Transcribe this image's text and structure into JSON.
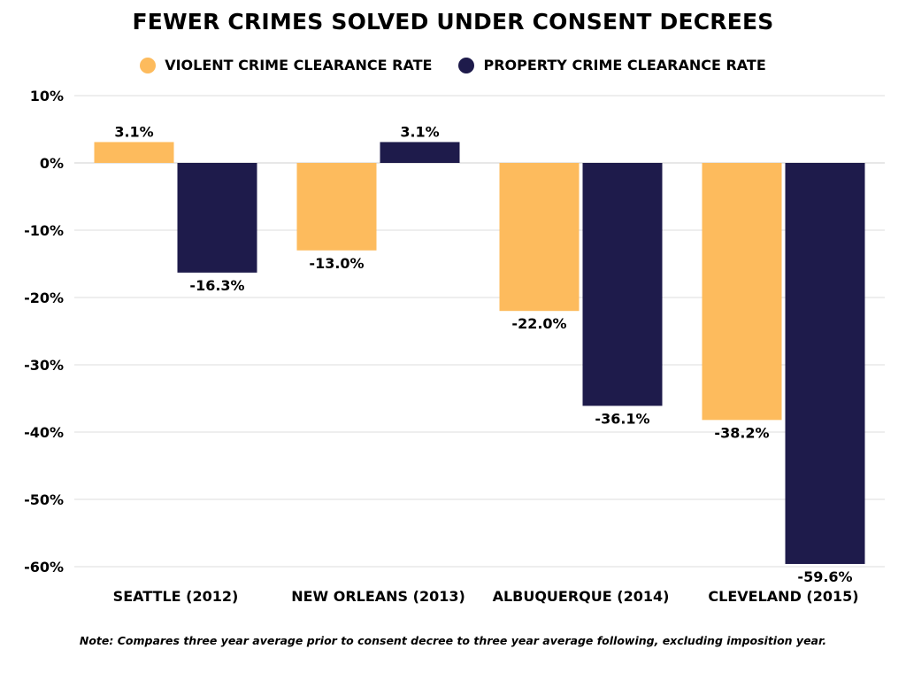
{
  "chart_data": {
    "type": "bar",
    "title": "FEWER CRIMES SOLVED UNDER CONSENT DECREES",
    "categories": [
      "SEATTLE (2012)",
      "NEW ORLEANS (2013)",
      "ALBUQUERQUE (2014)",
      "CLEVELAND (2015)"
    ],
    "series": [
      {
        "name": "VIOLENT CRIME CLEARANCE RATE",
        "color": "#fdbb5d",
        "values": [
          3.1,
          -13.0,
          -22.0,
          -38.2
        ]
      },
      {
        "name": "PROPERTY CRIME CLEARANCE RATE",
        "color": "#1e1b4b",
        "values": [
          -16.3,
          3.1,
          -36.1,
          -59.6
        ]
      }
    ],
    "data_labels": [
      [
        "3.1%",
        "-13.0%",
        "-22.0%",
        "-38.2%"
      ],
      [
        "-16.3%",
        "3.1%",
        "-36.1%",
        "-59.6%"
      ]
    ],
    "ylim": [
      -60,
      10
    ],
    "yticks": [
      10,
      0,
      -10,
      -20,
      -30,
      -40,
      -50,
      -60
    ],
    "ytick_labels": [
      "10%",
      "0%",
      "-10%",
      "-20%",
      "-30%",
      "-40%",
      "-50%",
      "-60%"
    ],
    "grid": true,
    "legend_position": "top-center",
    "xlabel": "",
    "ylabel": ""
  },
  "note": "Note: Compares three year average prior to consent decree to three year average following, excluding imposition year."
}
